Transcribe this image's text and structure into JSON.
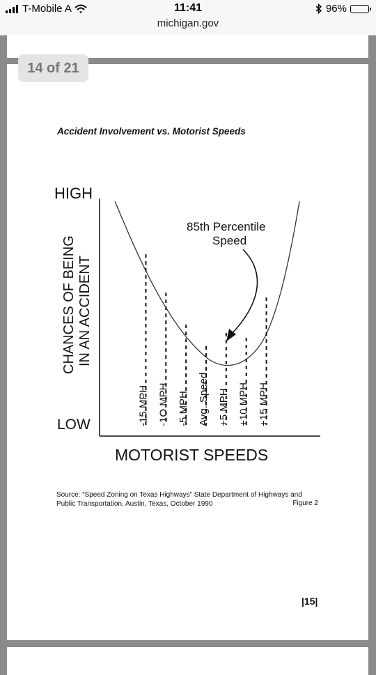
{
  "status_bar": {
    "carrier": "T-Mobile A",
    "time": "11:41",
    "url": "michigan.gov",
    "battery": "96%",
    "battery_level": 0.96
  },
  "viewer": {
    "page_counter": "14 of 21"
  },
  "document": {
    "figure_title": "Accident Involvement vs. Motorist Speeds",
    "source_line1": "Source: “Speed Zoning on Texas Highways” State Department of Highways and",
    "source_line2": "Public Transportation, Austin, Texas, October 1990",
    "figure_label": "Figure 2",
    "page_number": "|15|"
  },
  "chart_data": {
    "type": "line",
    "title": "Accident Involvement vs. Motorist Speeds",
    "xlabel": "MOTORIST SPEEDS",
    "ylabel_lines": [
      "CHANCES OF BEING",
      "IN AN ACCIDENT"
    ],
    "y_tick_labels": [
      "HIGH",
      "LOW"
    ],
    "x_offsets_mph": [
      -15,
      -10,
      -5,
      0,
      5,
      10,
      15
    ],
    "marker_labels": [
      "-15  MPH",
      "-1O  MPH",
      "-5  MPH",
      "Avg. Speed",
      "+5  MPH",
      "+10  MPH",
      "+15  MPH"
    ],
    "annotation": [
      "85th  Percentile",
      "Speed"
    ],
    "annotation_target_mph": 5,
    "curve": {
      "description_free": true
    }
  }
}
